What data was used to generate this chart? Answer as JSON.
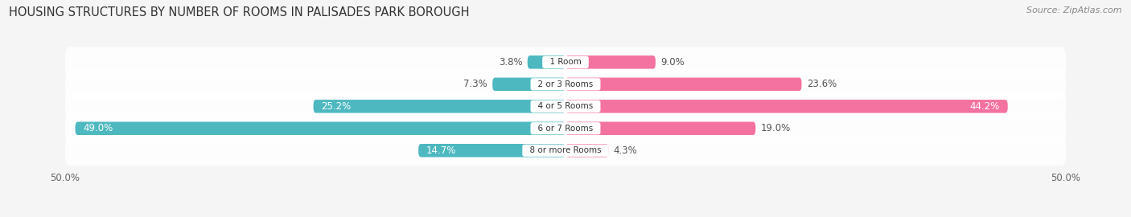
{
  "title": "HOUSING STRUCTURES BY NUMBER OF ROOMS IN PALISADES PARK BOROUGH",
  "source": "Source: ZipAtlas.com",
  "categories": [
    "1 Room",
    "2 or 3 Rooms",
    "4 or 5 Rooms",
    "6 or 7 Rooms",
    "8 or more Rooms"
  ],
  "owner_values": [
    3.8,
    7.3,
    25.2,
    49.0,
    14.7
  ],
  "renter_values": [
    9.0,
    23.6,
    44.2,
    19.0,
    4.3
  ],
  "owner_color": "#4db8c0",
  "renter_color": "#f472a0",
  "bar_height": 0.6,
  "row_bg_color": "#eeeeee",
  "title_fontsize": 10.5,
  "source_fontsize": 8,
  "label_fontsize": 8.5,
  "category_fontsize": 7.5,
  "legend_fontsize": 8.5,
  "axis_label_fontsize": 8.5,
  "background_color": "#f5f5f5"
}
